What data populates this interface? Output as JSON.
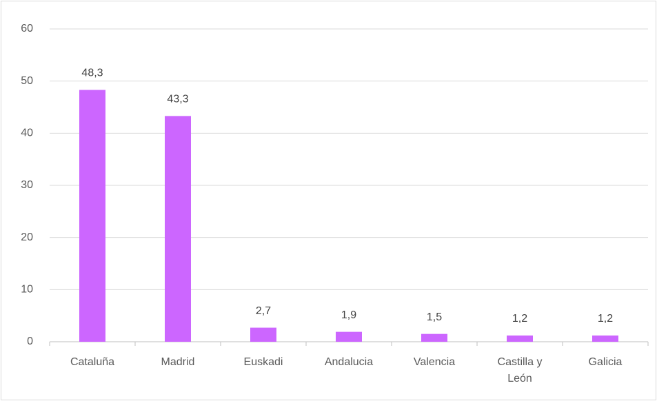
{
  "chart_data": {
    "type": "bar",
    "categories": [
      "Cataluña",
      "Madrid",
      "Euskadi",
      "Andalucia",
      "Valencia",
      "Castilla y León",
      "Galicia"
    ],
    "values": [
      48.3,
      43.3,
      2.7,
      1.9,
      1.5,
      1.2,
      1.2
    ],
    "value_labels": [
      "48,3",
      "43,3",
      "2,7",
      "1,9",
      "1,5",
      "1,2",
      "1,2"
    ],
    "color": "#cc66ff",
    "ylim": [
      0,
      60
    ],
    "yticks": [
      0,
      10,
      20,
      30,
      40,
      50,
      60
    ],
    "grid": true
  }
}
